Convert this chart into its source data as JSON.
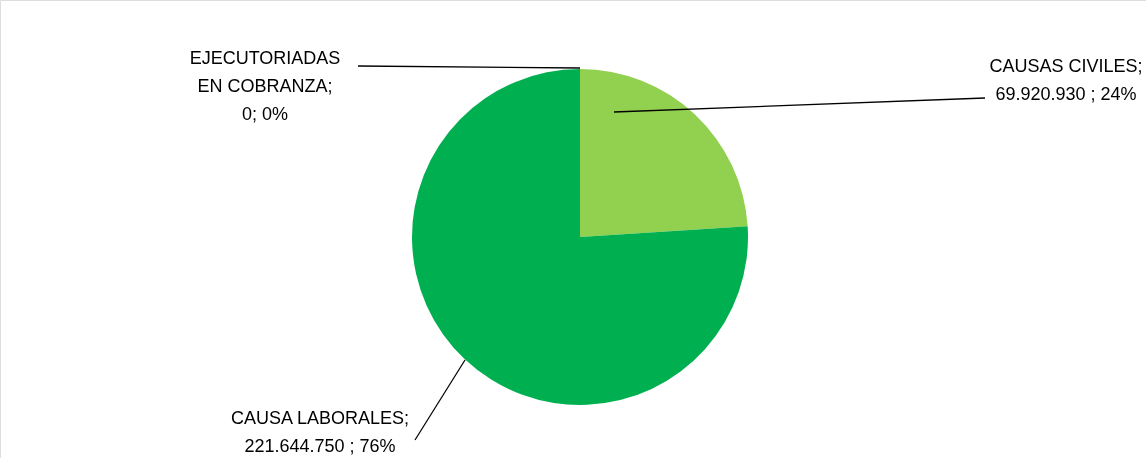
{
  "chart_data": {
    "type": "pie",
    "categories": [
      "CAUSAS CIVILES",
      "CAUSA LABORALES",
      "EJECUTORIADAS EN COBRANZA"
    ],
    "values": [
      69920930,
      221644750,
      0
    ],
    "colors": [
      "#92d050",
      "#00b050",
      "#ffc000"
    ],
    "value_labels": [
      "; 69.920.930 ; 24%",
      "; 221.644.750 ; 76%",
      "; 0; 0%"
    ]
  }
}
